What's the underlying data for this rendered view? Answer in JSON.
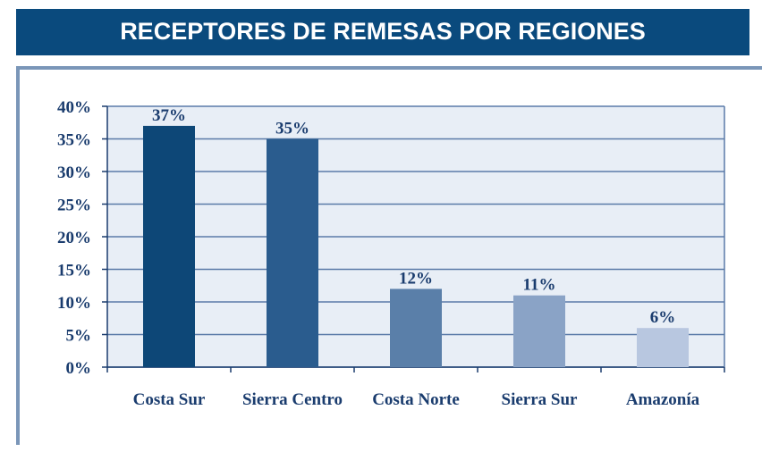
{
  "chart_data": {
    "type": "bar",
    "title": "RECEPTORES DE REMESAS POR REGIONES",
    "categories": [
      "Costa Sur",
      "Sierra Centro",
      "Costa Norte",
      "Sierra Sur",
      "Amazonía"
    ],
    "values": [
      37,
      35,
      12,
      11,
      6
    ],
    "value_labels": [
      "37%",
      "35%",
      "12%",
      "11%",
      "6%"
    ],
    "colors": [
      "#0d4777",
      "#2a5c8e",
      "#5a7fa9",
      "#8aa3c6",
      "#b8c7e0"
    ],
    "ylim": [
      0,
      40
    ],
    "yticks": [
      {
        "value": 0,
        "label": "0%"
      },
      {
        "value": 5,
        "label": "5%"
      },
      {
        "value": 10,
        "label": "10%"
      },
      {
        "value": 15,
        "label": "15%"
      },
      {
        "value": 20,
        "label": "20%"
      },
      {
        "value": 25,
        "label": "25%"
      },
      {
        "value": 30,
        "label": "30%"
      },
      {
        "value": 35,
        "label": "35%"
      },
      {
        "value": 40,
        "label": "40%"
      }
    ],
    "grid": true
  }
}
